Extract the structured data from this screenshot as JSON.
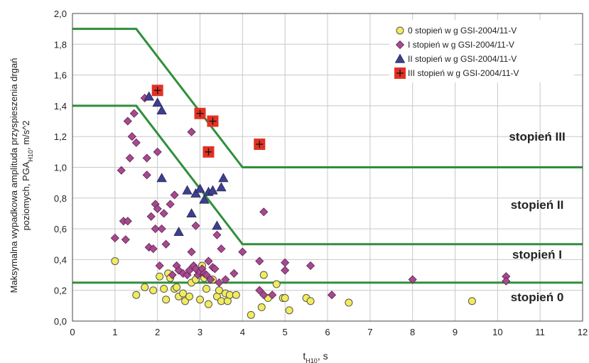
{
  "chart_data": {
    "type": "scatter",
    "ylabel_line1": "Maksymalna wypadkowa amplituda przyspieszenia drgań",
    "ylabel_line2_prefix": "poziomych, PGA",
    "ylabel_line2_sub": "H10",
    "ylabel_line2_suffix": ", m/s^2",
    "xlabel_main": "t",
    "xlabel_sub": "H10",
    "xlabel_suffix": ", s",
    "xlim": [
      0,
      12
    ],
    "ylim": [
      0,
      2.0
    ],
    "x_ticks": [
      "0",
      "1",
      "2",
      "3",
      "4",
      "5",
      "6",
      "7",
      "8",
      "9",
      "10",
      "11",
      "12"
    ],
    "y_ticks": [
      "0,0",
      "0,2",
      "0,4",
      "0,6",
      "0,8",
      "1,0",
      "1,2",
      "1,4",
      "1,6",
      "1,8",
      "2,0"
    ],
    "grid": true,
    "legend_position": "top-right",
    "zone_labels": [
      "stopień III",
      "stopień II",
      "stopień I",
      "stopień 0"
    ],
    "boundary_lines": [
      {
        "points": [
          [
            0,
            1.9
          ],
          [
            1.5,
            1.9
          ],
          [
            4.0,
            1.0
          ],
          [
            12,
            1.0
          ]
        ]
      },
      {
        "points": [
          [
            0,
            1.4
          ],
          [
            1.5,
            1.4
          ],
          [
            4.0,
            0.5
          ],
          [
            12,
            0.5
          ]
        ]
      },
      {
        "points": [
          [
            0,
            0.25
          ],
          [
            12,
            0.25
          ]
        ]
      }
    ],
    "series": [
      {
        "name": "0 stopień w g GSI-2004/11-V",
        "marker": "circle",
        "color": "#f2ec5c",
        "points": [
          [
            1.0,
            0.39
          ],
          [
            1.5,
            0.17
          ],
          [
            1.7,
            0.22
          ],
          [
            1.9,
            0.2
          ],
          [
            2.05,
            0.29
          ],
          [
            2.15,
            0.21
          ],
          [
            2.2,
            0.14
          ],
          [
            2.25,
            0.31
          ],
          [
            2.3,
            0.28
          ],
          [
            2.4,
            0.21
          ],
          [
            2.45,
            0.22
          ],
          [
            2.5,
            0.16
          ],
          [
            2.6,
            0.18
          ],
          [
            2.65,
            0.13
          ],
          [
            2.75,
            0.16
          ],
          [
            2.8,
            0.25
          ],
          [
            2.9,
            0.27
          ],
          [
            3.0,
            0.14
          ],
          [
            3.05,
            0.36
          ],
          [
            3.1,
            0.28
          ],
          [
            3.15,
            0.21
          ],
          [
            3.2,
            0.11
          ],
          [
            3.3,
            0.27
          ],
          [
            3.4,
            0.16
          ],
          [
            3.45,
            0.2
          ],
          [
            3.5,
            0.13
          ],
          [
            3.6,
            0.18
          ],
          [
            3.65,
            0.13
          ],
          [
            3.7,
            0.17
          ],
          [
            3.85,
            0.17
          ],
          [
            4.2,
            0.04
          ],
          [
            4.45,
            0.09
          ],
          [
            4.5,
            0.3
          ],
          [
            4.6,
            0.15
          ],
          [
            4.8,
            0.24
          ],
          [
            4.95,
            0.15
          ],
          [
            5.0,
            0.15
          ],
          [
            5.1,
            0.07
          ],
          [
            5.5,
            0.15
          ],
          [
            5.6,
            0.13
          ],
          [
            6.5,
            0.12
          ],
          [
            9.4,
            0.13
          ]
        ]
      },
      {
        "name": "I stopień w g GSI-2004/11-V",
        "marker": "diamond",
        "color": "#a8498f",
        "points": [
          [
            1.0,
            0.54
          ],
          [
            1.15,
            0.98
          ],
          [
            1.2,
            0.65
          ],
          [
            1.25,
            0.53
          ],
          [
            1.3,
            0.65
          ],
          [
            1.3,
            1.3
          ],
          [
            1.35,
            1.06
          ],
          [
            1.4,
            1.2
          ],
          [
            1.45,
            1.35
          ],
          [
            1.5,
            1.16
          ],
          [
            1.7,
            1.45
          ],
          [
            1.75,
            0.95
          ],
          [
            1.75,
            1.06
          ],
          [
            1.8,
            0.48
          ],
          [
            1.85,
            0.68
          ],
          [
            1.9,
            0.47
          ],
          [
            1.95,
            0.6
          ],
          [
            1.95,
            0.76
          ],
          [
            2.0,
            0.73
          ],
          [
            2.0,
            1.1
          ],
          [
            2.05,
            0.36
          ],
          [
            2.1,
            0.6
          ],
          [
            2.15,
            0.7
          ],
          [
            2.2,
            0.5
          ],
          [
            2.3,
            0.76
          ],
          [
            2.35,
            0.3
          ],
          [
            2.4,
            0.82
          ],
          [
            2.45,
            0.36
          ],
          [
            2.5,
            0.33
          ],
          [
            2.6,
            0.31
          ],
          [
            2.7,
            0.3
          ],
          [
            2.75,
            0.33
          ],
          [
            2.8,
            0.45
          ],
          [
            2.85,
            0.36
          ],
          [
            2.9,
            0.34
          ],
          [
            2.95,
            0.3
          ],
          [
            3.0,
            0.32
          ],
          [
            3.05,
            0.34
          ],
          [
            3.1,
            0.31
          ],
          [
            3.15,
            0.3
          ],
          [
            3.2,
            0.39
          ],
          [
            3.25,
            0.27
          ],
          [
            3.3,
            0.35
          ],
          [
            3.35,
            0.34
          ],
          [
            3.4,
            0.56
          ],
          [
            3.45,
            0.25
          ],
          [
            3.5,
            0.47
          ],
          [
            3.6,
            0.27
          ],
          [
            3.8,
            0.31
          ],
          [
            4.0,
            0.45
          ],
          [
            4.4,
            0.39
          ],
          [
            4.5,
            0.71
          ],
          [
            4.4,
            0.2
          ],
          [
            4.5,
            0.17
          ],
          [
            4.7,
            0.17
          ],
          [
            5.0,
            0.38
          ],
          [
            5.0,
            0.33
          ],
          [
            5.6,
            0.36
          ],
          [
            6.1,
            0.17
          ],
          [
            8.0,
            0.27
          ],
          [
            10.2,
            0.29
          ],
          [
            10.2,
            0.26
          ],
          [
            2.8,
            1.23
          ],
          [
            2.9,
            0.62
          ]
        ]
      },
      {
        "name": "II stopień w g GSI-2004/11-V",
        "marker": "triangle",
        "color": "#3f3f8f",
        "points": [
          [
            1.8,
            1.46
          ],
          [
            2.0,
            1.42
          ],
          [
            2.1,
            1.37
          ],
          [
            2.1,
            0.93
          ],
          [
            2.5,
            0.58
          ],
          [
            2.7,
            0.85
          ],
          [
            2.8,
            0.7
          ],
          [
            2.9,
            0.83
          ],
          [
            3.0,
            0.86
          ],
          [
            3.1,
            0.79
          ],
          [
            3.2,
            0.84
          ],
          [
            3.3,
            0.85
          ],
          [
            3.4,
            0.62
          ],
          [
            3.5,
            0.87
          ],
          [
            3.55,
            0.93
          ]
        ]
      },
      {
        "name": "III stopień w g GSI-2004/11-V",
        "marker": "square-cross",
        "color": "#e13224",
        "points": [
          [
            2.0,
            1.5
          ],
          [
            3.0,
            1.35
          ],
          [
            3.3,
            1.3
          ],
          [
            3.2,
            1.1
          ],
          [
            4.4,
            1.15
          ]
        ]
      }
    ]
  }
}
